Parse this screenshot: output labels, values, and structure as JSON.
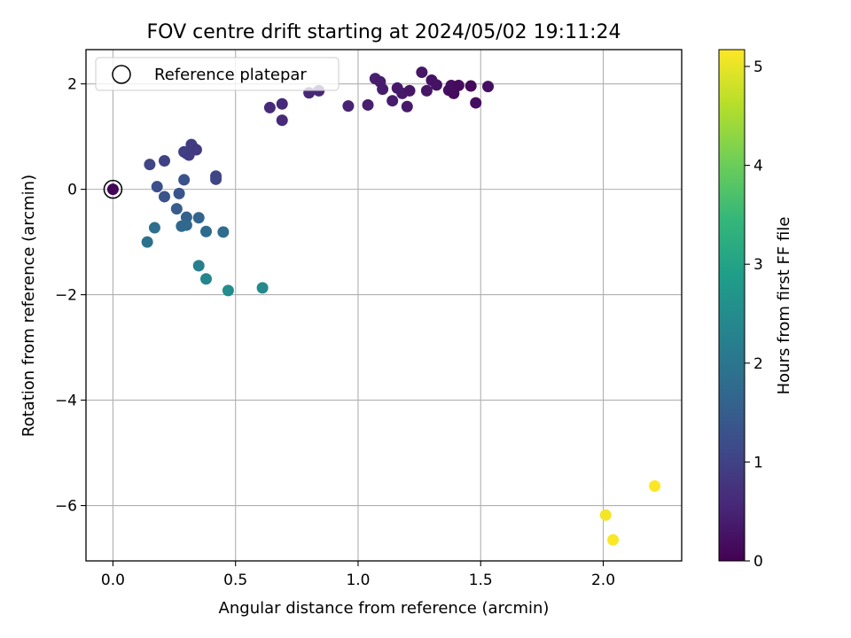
{
  "chart_data": {
    "type": "scatter",
    "title": "FOV centre drift starting at 2024/05/02 19:11:24",
    "xlabel": "Angular distance from reference (arcmin)",
    "ylabel": "Rotation from reference (arcmin)",
    "xlim": [
      -0.11,
      2.32
    ],
    "ylim": [
      -7.05,
      2.65
    ],
    "xticks": [
      0.0,
      0.5,
      1.0,
      1.5,
      2.0
    ],
    "xtick_labels": [
      "0.0",
      "0.5",
      "1.0",
      "1.5",
      "2.0"
    ],
    "yticks": [
      -6,
      -4,
      -2,
      0,
      2
    ],
    "ytick_labels": [
      "−6",
      "−4",
      "−2",
      "0",
      "2"
    ],
    "grid": true,
    "legend_position": "top-left",
    "legend_label": "Reference platepar",
    "colorbar": {
      "label": "Hours from first FF file",
      "range": [
        0,
        5.17
      ],
      "ticks": [
        0,
        1,
        2,
        3,
        4,
        5
      ],
      "tick_labels": [
        "0",
        "1",
        "2",
        "3",
        "4",
        "5"
      ],
      "colormap": "viridis"
    },
    "reference_point": {
      "x": 0.0,
      "y": 0.0
    },
    "series": [
      {
        "points": [
          {
            "x": 0.0,
            "y": 0.0,
            "c": 0.05
          },
          {
            "x": 0.64,
            "y": 1.55,
            "c": 0.6
          },
          {
            "x": 0.69,
            "y": 1.62,
            "c": 0.6
          },
          {
            "x": 0.69,
            "y": 1.31,
            "c": 0.6
          },
          {
            "x": 0.8,
            "y": 1.83,
            "c": 0.55
          },
          {
            "x": 0.84,
            "y": 1.87,
            "c": 0.55
          },
          {
            "x": 0.96,
            "y": 1.58,
            "c": 0.5
          },
          {
            "x": 1.04,
            "y": 1.6,
            "c": 0.45
          },
          {
            "x": 1.07,
            "y": 2.1,
            "c": 0.45
          },
          {
            "x": 1.09,
            "y": 2.04,
            "c": 0.4
          },
          {
            "x": 1.1,
            "y": 1.9,
            "c": 0.4
          },
          {
            "x": 1.14,
            "y": 1.68,
            "c": 0.4
          },
          {
            "x": 1.16,
            "y": 1.92,
            "c": 0.35
          },
          {
            "x": 1.18,
            "y": 1.82,
            "c": 0.35
          },
          {
            "x": 1.2,
            "y": 1.57,
            "c": 0.35
          },
          {
            "x": 1.21,
            "y": 1.87,
            "c": 0.3
          },
          {
            "x": 1.26,
            "y": 2.22,
            "c": 0.3
          },
          {
            "x": 1.28,
            "y": 1.87,
            "c": 0.3
          },
          {
            "x": 1.3,
            "y": 2.07,
            "c": 0.25
          },
          {
            "x": 1.32,
            "y": 1.98,
            "c": 0.25
          },
          {
            "x": 1.37,
            "y": 1.88,
            "c": 0.2
          },
          {
            "x": 1.38,
            "y": 1.97,
            "c": 0.2
          },
          {
            "x": 1.39,
            "y": 1.82,
            "c": 0.15
          },
          {
            "x": 1.41,
            "y": 1.97,
            "c": 0.15
          },
          {
            "x": 1.46,
            "y": 1.96,
            "c": 0.1
          },
          {
            "x": 1.48,
            "y": 1.64,
            "c": 0.2
          },
          {
            "x": 1.53,
            "y": 1.95,
            "c": 0.2
          },
          {
            "x": 0.15,
            "y": 0.47,
            "c": 1.05
          },
          {
            "x": 0.21,
            "y": 0.54,
            "c": 1.0
          },
          {
            "x": 0.29,
            "y": 0.71,
            "c": 0.95
          },
          {
            "x": 0.3,
            "y": 0.68,
            "c": 0.95
          },
          {
            "x": 0.31,
            "y": 0.65,
            "c": 0.9
          },
          {
            "x": 0.32,
            "y": 0.85,
            "c": 0.9
          },
          {
            "x": 0.33,
            "y": 0.78,
            "c": 0.9
          },
          {
            "x": 0.34,
            "y": 0.75,
            "c": 0.85
          },
          {
            "x": 0.42,
            "y": 0.25,
            "c": 1.05
          },
          {
            "x": 0.42,
            "y": 0.19,
            "c": 1.05
          },
          {
            "x": 0.18,
            "y": 0.05,
            "c": 1.25
          },
          {
            "x": 0.21,
            "y": -0.14,
            "c": 1.3
          },
          {
            "x": 0.27,
            "y": -0.08,
            "c": 1.35
          },
          {
            "x": 0.29,
            "y": 0.18,
            "c": 1.3
          },
          {
            "x": 0.26,
            "y": -0.37,
            "c": 1.5
          },
          {
            "x": 0.3,
            "y": -0.53,
            "c": 1.6
          },
          {
            "x": 0.35,
            "y": -0.54,
            "c": 1.65
          },
          {
            "x": 0.28,
            "y": -0.7,
            "c": 1.7
          },
          {
            "x": 0.3,
            "y": -0.68,
            "c": 1.7
          },
          {
            "x": 0.38,
            "y": -0.8,
            "c": 1.75
          },
          {
            "x": 0.45,
            "y": -0.81,
            "c": 1.8
          },
          {
            "x": 0.17,
            "y": -0.73,
            "c": 1.85
          },
          {
            "x": 0.14,
            "y": -1.0,
            "c": 1.9
          },
          {
            "x": 0.35,
            "y": -1.45,
            "c": 2.2
          },
          {
            "x": 0.38,
            "y": -1.7,
            "c": 2.35
          },
          {
            "x": 0.47,
            "y": -1.92,
            "c": 2.5
          },
          {
            "x": 0.61,
            "y": -1.87,
            "c": 2.45
          },
          {
            "x": 2.01,
            "y": -6.18,
            "c": 5.1
          },
          {
            "x": 2.04,
            "y": -6.65,
            "c": 5.15
          },
          {
            "x": 2.21,
            "y": -5.63,
            "c": 5.17
          }
        ]
      }
    ]
  }
}
